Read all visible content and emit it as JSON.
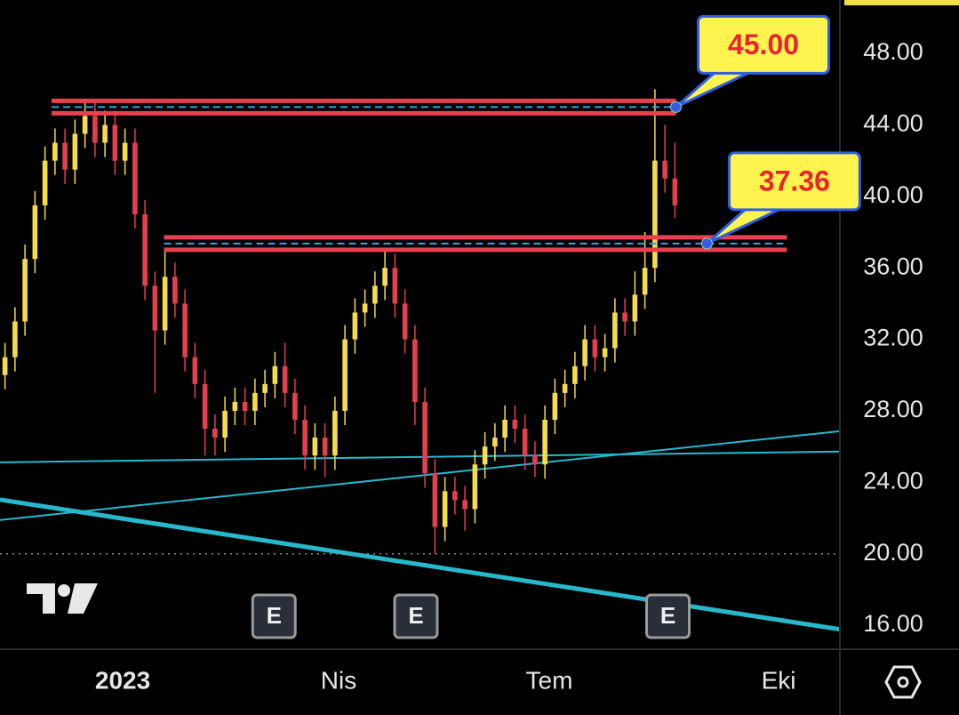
{
  "chart_data": {
    "type": "candlestick",
    "up_color": "#f5dc4a",
    "down_color": "#e43f4f",
    "open": [
      30,
      31,
      33,
      36.5,
      39.5,
      42,
      43,
      41.5,
      43.5,
      44.5,
      43,
      44,
      42,
      43,
      39,
      35,
      32.5,
      35.5,
      34,
      31,
      29.5,
      27,
      26.5,
      28,
      28.5,
      28,
      29,
      29.5,
      30.5,
      29,
      27.5,
      25.5,
      26.5,
      25.5,
      28,
      32,
      33.5,
      34,
      35,
      36,
      34,
      32,
      28.5,
      24.5,
      21.5,
      23.5,
      23,
      22.5,
      25,
      26,
      26.5,
      27.5,
      27,
      25.5,
      25,
      27.5,
      29,
      29.5,
      30.5,
      32,
      31,
      31.5,
      33.5,
      33,
      34.5,
      36,
      42,
      41
    ],
    "high": [
      31.8,
      33.8,
      37.3,
      40.3,
      42.8,
      43.8,
      43.8,
      44.3,
      45.3,
      45.3,
      44.8,
      44.8,
      43.8,
      43.8,
      39.8,
      35.8,
      37,
      36.3,
      34.8,
      31.8,
      30.3,
      27.8,
      28.8,
      29.3,
      29.3,
      29.8,
      30.3,
      31.3,
      31.8,
      29.8,
      28.3,
      27.3,
      27.3,
      28.8,
      32.8,
      34.3,
      34.8,
      35.8,
      37,
      36.8,
      34.8,
      32.8,
      29.3,
      25.3,
      24.3,
      24.3,
      23.8,
      25.8,
      26.8,
      27.3,
      28.3,
      28.3,
      27.8,
      26.3,
      28.3,
      29.8,
      30.3,
      31.3,
      32.8,
      32.8,
      32.3,
      34.3,
      34.3,
      35.8,
      38,
      46,
      44,
      43
    ],
    "low": [
      29.2,
      30.2,
      32.2,
      35.7,
      38.7,
      41.2,
      40.7,
      40.7,
      42.7,
      42.2,
      42.2,
      41.2,
      41.2,
      38.2,
      34.2,
      29,
      31.7,
      33.2,
      30.2,
      28.7,
      25.5,
      25.5,
      25.7,
      27.2,
      27.2,
      27.2,
      28.2,
      28.7,
      28.2,
      26.7,
      24.7,
      24.7,
      24.3,
      24.7,
      27.2,
      31.2,
      32.7,
      33.2,
      34.2,
      33.2,
      31.2,
      27.2,
      23.7,
      20,
      20.7,
      22.2,
      21.3,
      21.7,
      24.2,
      25.2,
      25.7,
      26.2,
      24.7,
      24.3,
      24.2,
      26.7,
      28.2,
      28.7,
      29.7,
      30.2,
      30.2,
      30.7,
      32.2,
      32.2,
      33.7,
      35.2,
      40.2,
      38.8
    ],
    "close": [
      31,
      33,
      36.5,
      39.5,
      42,
      43,
      41.5,
      43.5,
      44.5,
      43,
      44,
      42,
      43,
      39,
      35,
      32.5,
      35.5,
      34,
      31,
      29.5,
      27,
      26.5,
      28,
      28.5,
      28,
      29,
      29.5,
      30.5,
      29,
      27.5,
      25.5,
      26.5,
      25.5,
      28,
      32,
      33.5,
      34,
      35,
      36,
      34,
      32,
      28.5,
      24.5,
      21.5,
      23.5,
      23,
      22.5,
      25,
      26,
      26.5,
      27.5,
      27,
      25.5,
      25,
      27.5,
      29,
      29.5,
      30.5,
      32,
      31,
      31.5,
      33.5,
      33,
      34.5,
      36,
      42,
      41,
      39.5
    ],
    "xlim": [
      0,
      84
    ],
    "ylim": [
      14.66,
      50.99
    ],
    "xticks": [
      {
        "value": 12.27,
        "label": "2023"
      },
      {
        "value": 33.87,
        "label": "Nis"
      },
      {
        "value": 54.93,
        "label": "Tem"
      },
      {
        "value": 77.87,
        "label": "Eki"
      }
    ],
    "yticks": [
      {
        "value": 16,
        "label": "16.00"
      },
      {
        "value": 20,
        "label": "20.00"
      },
      {
        "value": 24,
        "label": "24.00"
      },
      {
        "value": 28,
        "label": "28.00"
      },
      {
        "value": 32,
        "label": "32.00"
      },
      {
        "value": 36,
        "label": "36.00"
      },
      {
        "value": 40,
        "label": "40.00"
      },
      {
        "value": 44,
        "label": "44.00"
      },
      {
        "value": 48,
        "label": "48.00"
      }
    ],
    "levels": [
      {
        "value": 45,
        "label": "45.00",
        "x": [
          5.16,
          67.6
        ]
      },
      {
        "value": 37.36,
        "label": "37.36",
        "x": [
          16.4,
          78.7
        ],
        "anchor_x": 70.7
      }
    ],
    "trend_lines": [
      {
        "color": "#27b8cc",
        "width": 2,
        "x": [
          0,
          84
        ],
        "y": [
          25.12,
          25.72
        ]
      },
      {
        "color": "#27b8cc",
        "width": 2,
        "x": [
          0,
          84
        ],
        "y": [
          21.89,
          26.86
        ]
      },
      {
        "color": "#27b8cc",
        "width": 5,
        "x": [
          0,
          84
        ],
        "y": [
          23.03,
          15.77
        ]
      },
      {
        "color": "#888888",
        "width": 1.5,
        "dotted": true,
        "x": [
          0,
          84
        ],
        "y": [
          20,
          20
        ]
      }
    ],
    "events": [
      {
        "x": 27.4,
        "label": "E"
      },
      {
        "x": 41.6,
        "label": "E"
      },
      {
        "x": 66.8,
        "label": "E"
      }
    ]
  }
}
